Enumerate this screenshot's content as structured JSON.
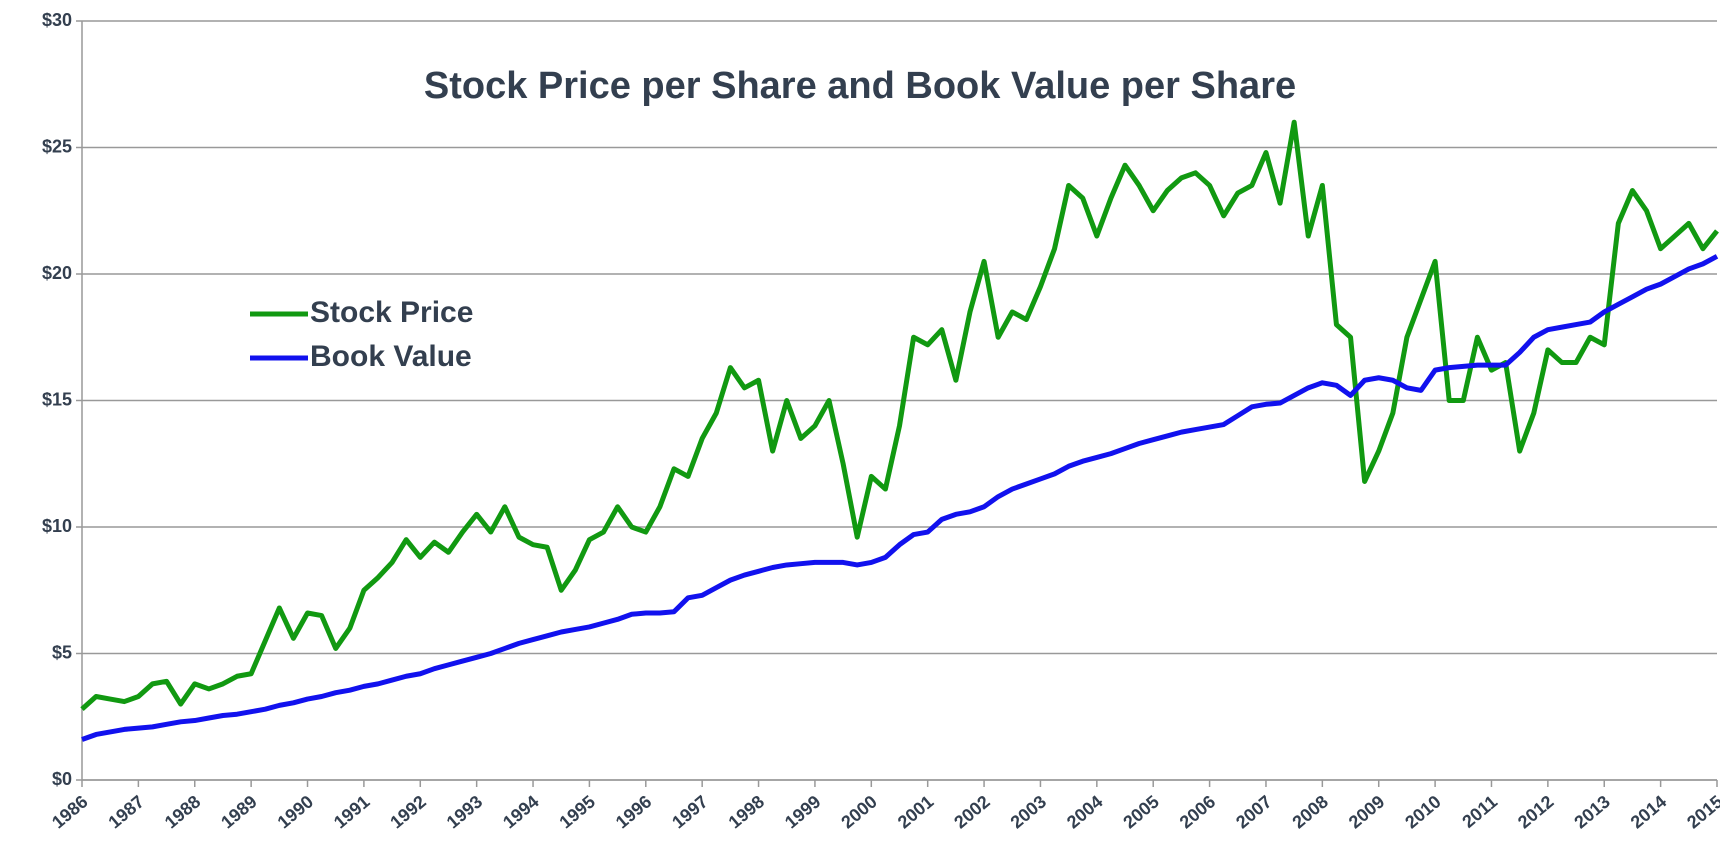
{
  "chart_data": {
    "type": "line",
    "title": "Stock Price per Share and Book Value per Share",
    "x": [
      1986,
      1986.25,
      1986.5,
      1986.75,
      1987,
      1987.25,
      1987.5,
      1987.75,
      1988,
      1988.25,
      1988.5,
      1988.75,
      1989,
      1989.25,
      1989.5,
      1989.75,
      1990,
      1990.25,
      1990.5,
      1990.75,
      1991,
      1991.25,
      1991.5,
      1991.75,
      1992,
      1992.25,
      1992.5,
      1992.75,
      1993,
      1993.25,
      1993.5,
      1993.75,
      1994,
      1994.25,
      1994.5,
      1994.75,
      1995,
      1995.25,
      1995.5,
      1995.75,
      1996,
      1996.25,
      1996.5,
      1996.75,
      1997,
      1997.25,
      1997.5,
      1997.75,
      1998,
      1998.25,
      1998.5,
      1998.75,
      1999,
      1999.25,
      1999.5,
      1999.75,
      2000,
      2000.25,
      2000.5,
      2000.75,
      2001,
      2001.25,
      2001.5,
      2001.75,
      2002,
      2002.25,
      2002.5,
      2002.75,
      2003,
      2003.25,
      2003.5,
      2003.75,
      2004,
      2004.25,
      2004.5,
      2004.75,
      2005,
      2005.25,
      2005.5,
      2005.75,
      2006,
      2006.25,
      2006.5,
      2006.75,
      2007,
      2007.25,
      2007.5,
      2007.75,
      2008,
      2008.25,
      2008.5,
      2008.75,
      2009,
      2009.25,
      2009.5,
      2009.75,
      2010,
      2010.25,
      2010.5,
      2010.75,
      2011,
      2011.25,
      2011.5,
      2011.75,
      2012,
      2012.25,
      2012.5,
      2012.75,
      2013,
      2013.25,
      2013.5,
      2013.75,
      2014,
      2014.25,
      2014.5,
      2014.75,
      2015
    ],
    "series": [
      {
        "name": "Stock Price",
        "color": "#119911",
        "values": [
          2.8,
          3.3,
          3.2,
          3.1,
          3.3,
          3.8,
          3.9,
          3.0,
          3.8,
          3.6,
          3.8,
          4.1,
          4.2,
          5.5,
          6.8,
          5.6,
          6.6,
          6.5,
          5.2,
          6.0,
          7.5,
          8.0,
          8.6,
          9.5,
          8.8,
          9.4,
          9.0,
          9.8,
          10.5,
          9.8,
          10.8,
          9.6,
          9.3,
          9.2,
          7.5,
          8.3,
          9.5,
          9.8,
          10.8,
          10.0,
          9.8,
          10.8,
          12.3,
          12.0,
          13.5,
          14.5,
          16.3,
          15.5,
          15.8,
          13.0,
          15.0,
          13.5,
          14.0,
          15.0,
          12.5,
          9.6,
          12.0,
          11.5,
          14.0,
          17.5,
          17.2,
          17.8,
          15.8,
          18.5,
          20.5,
          17.5,
          18.5,
          18.2,
          19.5,
          21.0,
          23.5,
          23.0,
          21.5,
          23.0,
          24.3,
          23.5,
          22.5,
          23.3,
          23.8,
          24.0,
          23.5,
          22.3,
          23.2,
          23.5,
          24.8,
          22.8,
          26.0,
          21.5,
          23.5,
          18.0,
          17.5,
          11.8,
          13.0,
          14.5,
          17.5,
          19.0,
          20.5,
          15.0,
          15.0,
          17.5,
          16.2,
          16.5,
          13.0,
          14.5,
          17.0,
          16.5,
          16.5,
          17.5,
          17.2,
          22.0,
          23.3,
          22.5,
          21.0,
          21.5,
          22.0,
          21.0,
          21.7
        ]
      },
      {
        "name": "Book Value",
        "color": "#1111ee",
        "values": [
          1.6,
          1.8,
          1.9,
          2.0,
          2.05,
          2.1,
          2.2,
          2.3,
          2.35,
          2.45,
          2.55,
          2.6,
          2.7,
          2.8,
          2.95,
          3.05,
          3.2,
          3.3,
          3.45,
          3.55,
          3.7,
          3.8,
          3.95,
          4.1,
          4.2,
          4.4,
          4.55,
          4.7,
          4.85,
          5.0,
          5.2,
          5.4,
          5.55,
          5.7,
          5.85,
          5.95,
          6.05,
          6.2,
          6.35,
          6.55,
          6.6,
          6.6,
          6.65,
          7.2,
          7.3,
          7.6,
          7.9,
          8.1,
          8.25,
          8.4,
          8.5,
          8.55,
          8.6,
          8.6,
          8.6,
          8.5,
          8.6,
          8.8,
          9.3,
          9.7,
          9.8,
          10.3,
          10.5,
          10.6,
          10.8,
          11.2,
          11.5,
          11.7,
          11.9,
          12.1,
          12.4,
          12.6,
          12.75,
          12.9,
          13.1,
          13.3,
          13.45,
          13.6,
          13.75,
          13.85,
          13.95,
          14.05,
          14.4,
          14.75,
          14.85,
          14.9,
          15.2,
          15.5,
          15.7,
          15.6,
          15.2,
          15.8,
          15.9,
          15.8,
          15.5,
          15.4,
          16.2,
          16.3,
          16.35,
          16.4,
          16.4,
          16.4,
          16.9,
          17.5,
          17.8,
          17.9,
          18.0,
          18.1,
          18.5,
          18.8,
          19.1,
          19.4,
          19.6,
          19.9,
          20.2,
          20.4,
          20.7
        ]
      }
    ],
    "xlim": [
      1986,
      2015
    ],
    "xticks": [
      1986,
      1987,
      1988,
      1989,
      1990,
      1991,
      1992,
      1993,
      1994,
      1995,
      1996,
      1997,
      1998,
      1999,
      2000,
      2001,
      2002,
      2003,
      2004,
      2005,
      2006,
      2007,
      2008,
      2009,
      2010,
      2011,
      2012,
      2013,
      2014,
      2015
    ],
    "ylim": [
      0,
      30
    ],
    "yticks": [
      {
        "value": 0,
        "label": "$0"
      },
      {
        "value": 5,
        "label": "$5"
      },
      {
        "value": 10,
        "label": "$10"
      },
      {
        "value": 15,
        "label": "$15"
      },
      {
        "value": 20,
        "label": "$20"
      },
      {
        "value": 25,
        "label": "$25"
      },
      {
        "value": 30,
        "label": "$30"
      }
    ],
    "grid": true,
    "legend": "left"
  }
}
